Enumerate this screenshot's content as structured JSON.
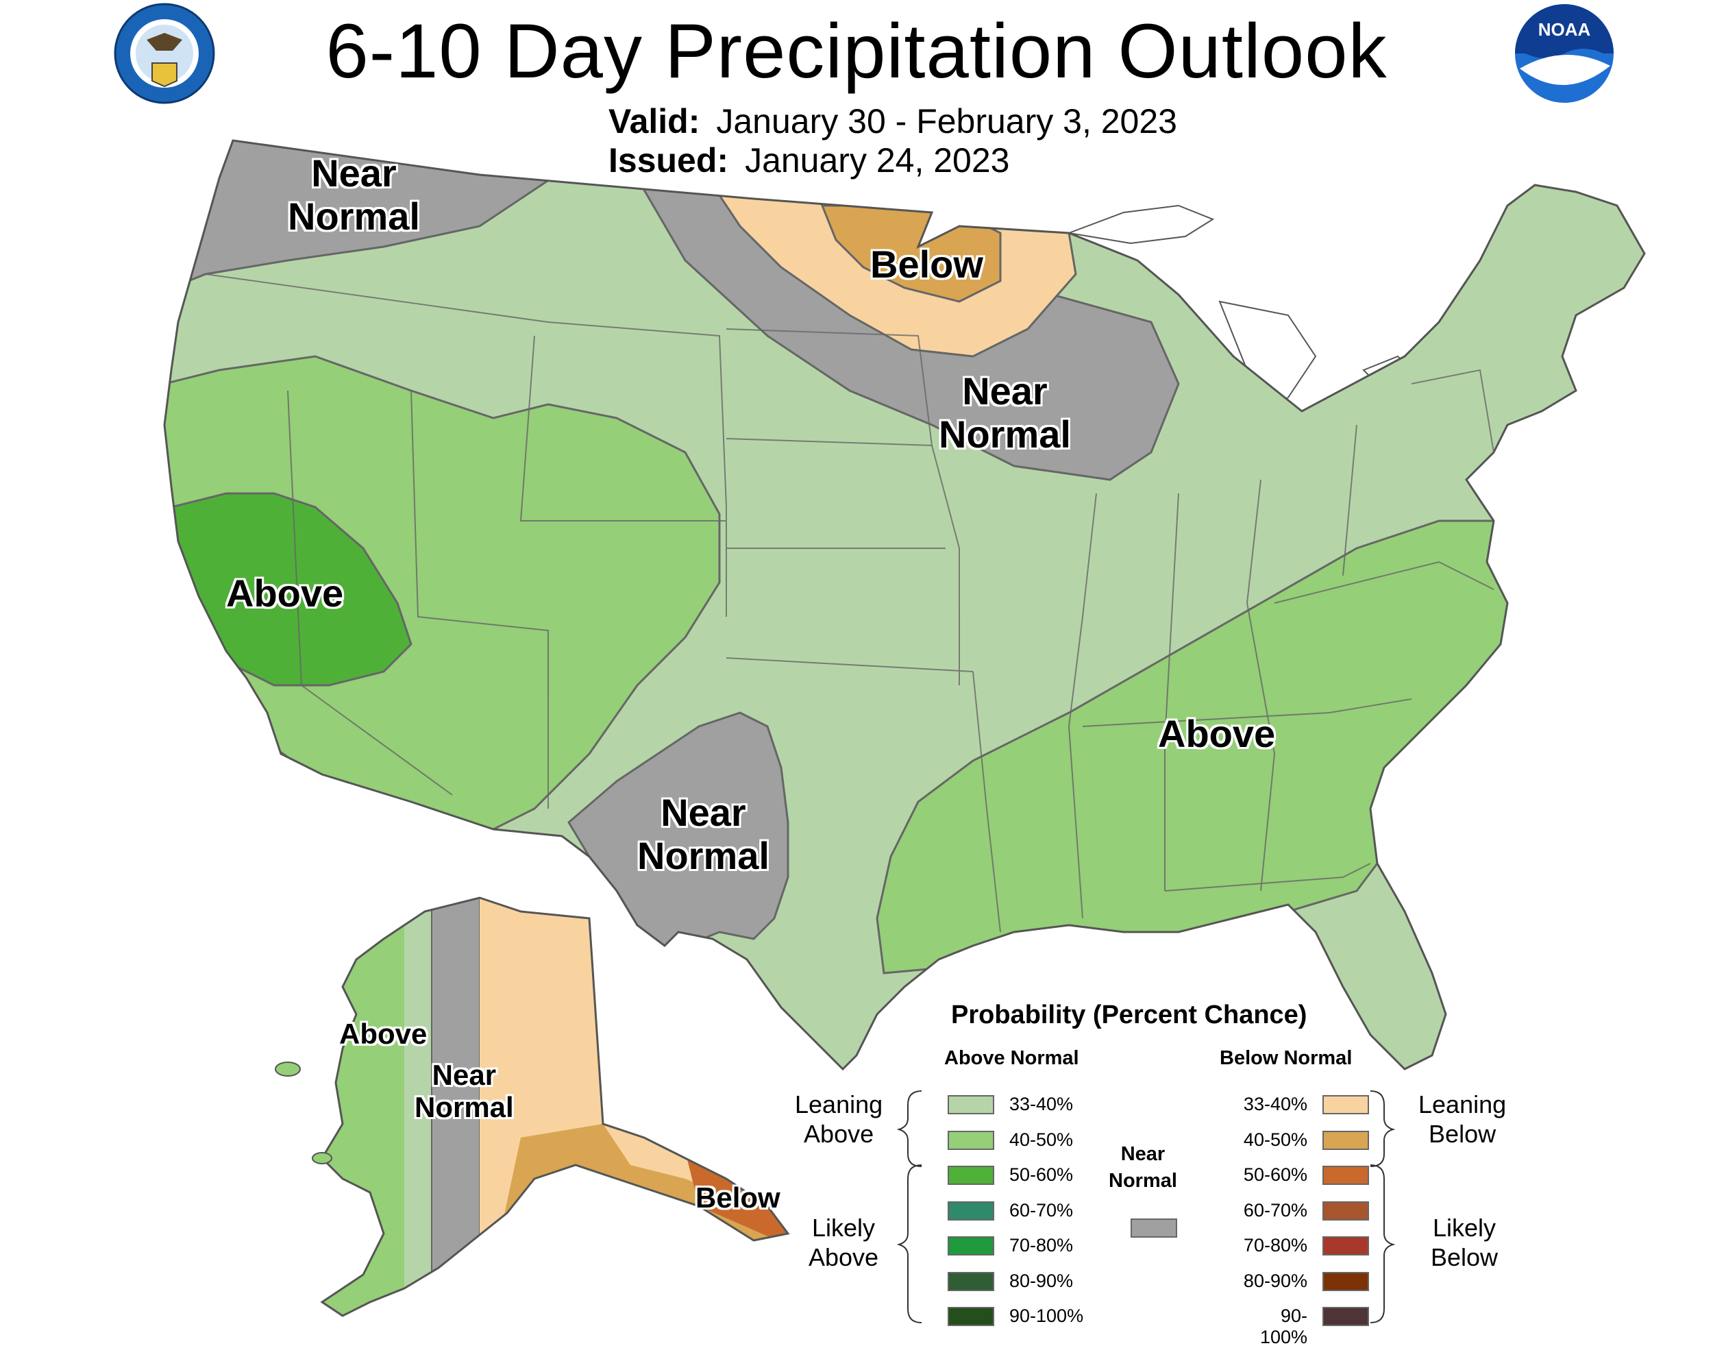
{
  "title": "6-10 Day Precipitation Outlook",
  "valid_label": "Valid:",
  "valid_value": "January 30 - February 3, 2023",
  "issued_label": "Issued:",
  "issued_value": "January 24, 2023",
  "logos": {
    "left": "department-of-commerce-seal",
    "right": "noaa-logo",
    "noaa_text": "NOAA"
  },
  "map_labels": {
    "nw_near": [
      "Near",
      "Normal"
    ],
    "ne_below": "Below",
    "greatlakes_near": [
      "Near",
      "Normal"
    ],
    "west_above": "Above",
    "texas_near": [
      "Near",
      "Normal"
    ],
    "se_above": "Above",
    "ak_above": "Above",
    "ak_near": [
      "Near",
      "Normal"
    ],
    "ak_below": "Below"
  },
  "legend": {
    "title": "Probability (Percent Chance)",
    "above_head": "Above Normal",
    "below_head": "Below Normal",
    "near_head": [
      "Near",
      "Normal"
    ],
    "leaning_above": [
      "Leaning",
      "Above"
    ],
    "likely_above": [
      "Likely",
      "Above"
    ],
    "leaning_below": [
      "Leaning",
      "Below"
    ],
    "likely_below": [
      "Likely",
      "Below"
    ],
    "above": [
      {
        "label": "33-40%",
        "color": "#b5d5a8"
      },
      {
        "label": "40-50%",
        "color": "#95cf78"
      },
      {
        "label": "50-60%",
        "color": "#4fb038"
      },
      {
        "label": "60-70%",
        "color": "#2e8a6a"
      },
      {
        "label": "70-80%",
        "color": "#1f9a3c"
      },
      {
        "label": "80-90%",
        "color": "#2f5e35"
      },
      {
        "label": "90-100%",
        "color": "#244e1b"
      }
    ],
    "below": [
      {
        "label": "33-40%",
        "color": "#f8d3a0"
      },
      {
        "label": "40-50%",
        "color": "#d9a552"
      },
      {
        "label": "50-60%",
        "color": "#c96a2c"
      },
      {
        "label": "60-70%",
        "color": "#a8552e"
      },
      {
        "label": "70-80%",
        "color": "#a8382a"
      },
      {
        "label": "80-90%",
        "color": "#7a3206"
      },
      {
        "label": "90-100%",
        "color": "#4e3436"
      }
    ],
    "near_color": "#a0a0a0"
  }
}
